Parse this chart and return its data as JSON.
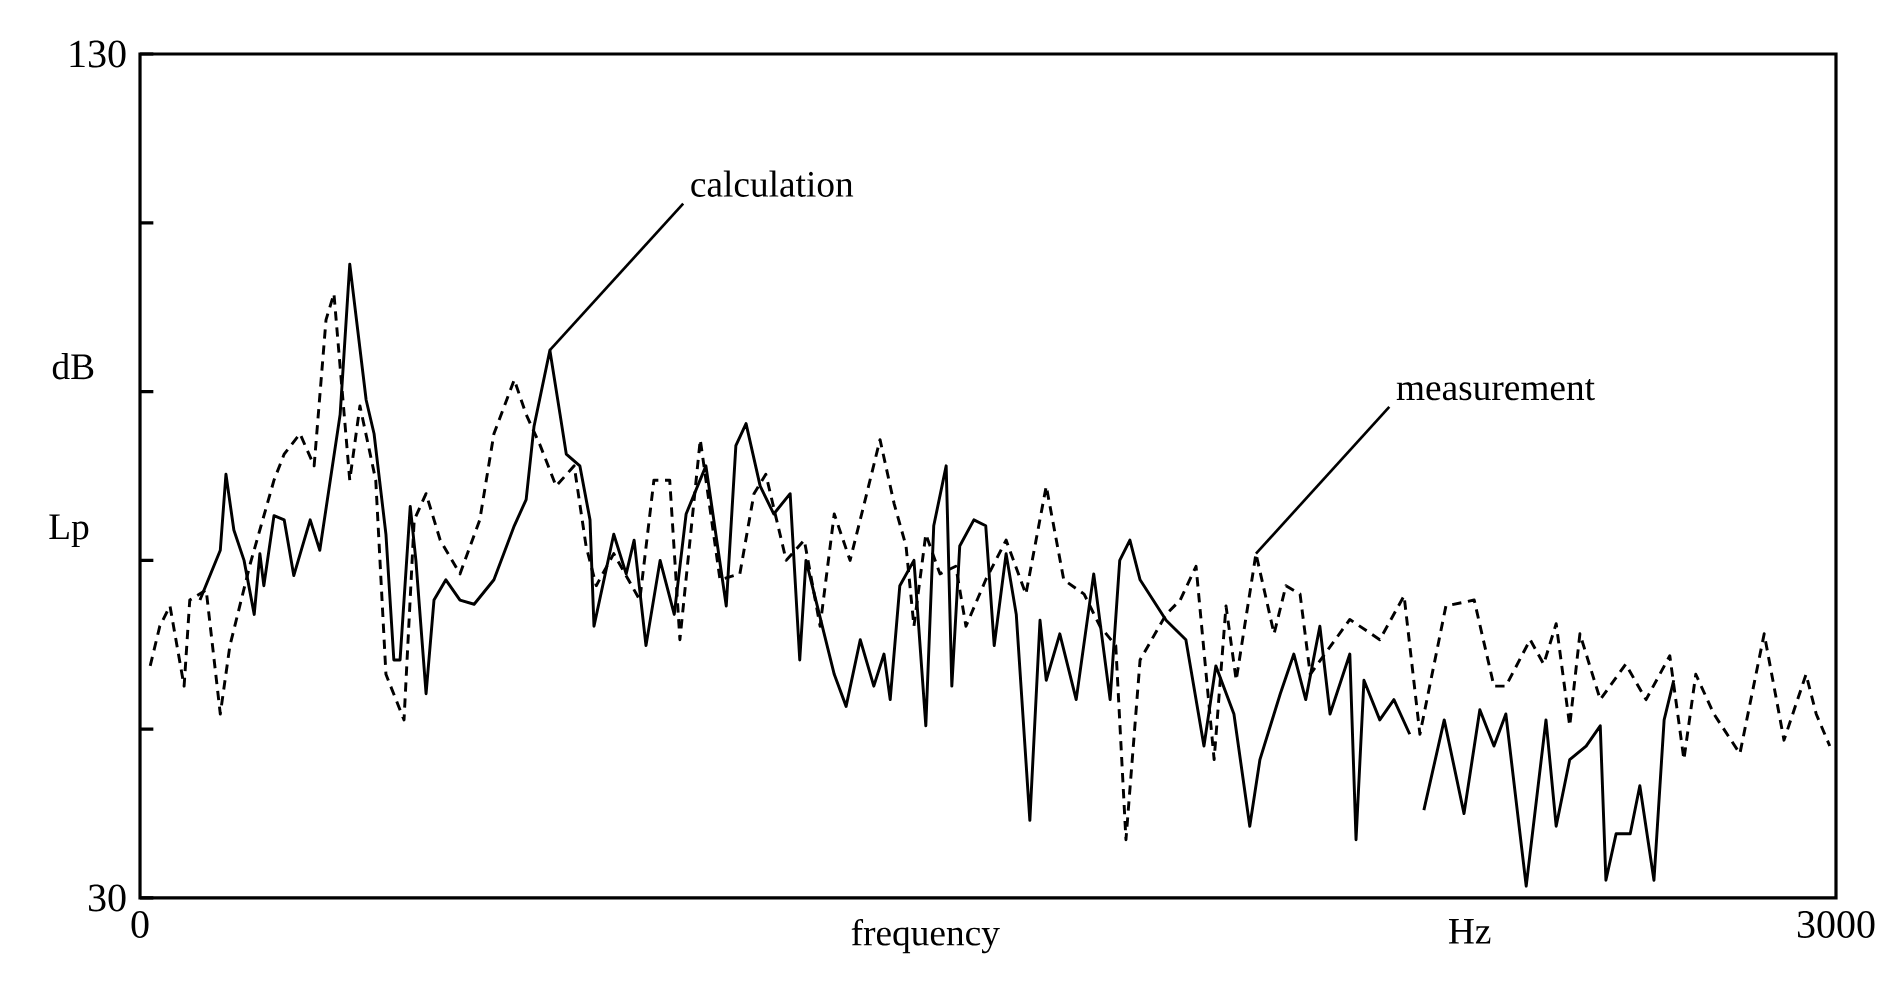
{
  "chart_data": {
    "type": "line",
    "xlabel": "frequency",
    "ylabel": "Lp",
    "xlim": [
      0,
      3000
    ],
    "ylim": [
      30,
      130
    ],
    "xticks": [
      0,
      3000
    ],
    "yticks": [
      30,
      {
        "value": 50,
        "label": null
      },
      {
        "value": 70,
        "label": null
      },
      {
        "value": 90,
        "label": null
      },
      {
        "value": 110,
        "label": null
      },
      130
    ],
    "grid": false,
    "marker": "none",
    "annotations": [
      {
        "text": "calculation",
        "x": 725,
        "y": 94.9
      },
      {
        "text": "measurement",
        "x": 1974,
        "y": 70.8
      },
      "dB",
      "Hz"
    ],
    "series": [
      {
        "color": "#000000",
        "line_style": "solid",
        "x": [
          106,
          142,
          152,
          166,
          184,
          202,
          212,
          219,
          237,
          255,
          272,
          301,
          318,
          354,
          371,
          400,
          414,
          435,
          449,
          460,
          478,
          488,
          506,
          520,
          541,
          566,
          591,
          626,
          662,
          683,
          697,
          725,
          743,
          754,
          778,
          796,
          803,
          838,
          860,
          874,
          895,
          920,
          945,
          966,
          1001,
          1037,
          1054,
          1072,
          1097,
          1121,
          1150,
          1167,
          1178,
          1228,
          1249,
          1274,
          1298,
          1316,
          1327,
          1344,
          1369,
          1390,
          1404,
          1426,
          1436,
          1450,
          1475,
          1496,
          1511,
          1532,
          1550,
          1574,
          1592,
          1603,
          1627,
          1656,
          1687,
          1716,
          1733,
          1751,
          1769,
          1815,
          1850,
          1882,
          1903,
          1935,
          1963,
          1981,
          2017,
          2041,
          2062,
          2087,
          2105,
          2140,
          2151,
          2165,
          2193,
          2218,
          2246,
          2258,
          2271,
          2307,
          2342,
          2370,
          2395,
          2416,
          2434,
          2452,
          2487,
          2505,
          2529,
          2558,
          2583,
          2593,
          2611,
          2636,
          2653,
          2678,
          2696,
          2713
        ],
        "values": [
          65.3,
          71.2,
          80.2,
          73.6,
          70.0,
          63.6,
          70.8,
          67.0,
          75.3,
          74.8,
          68.2,
          74.8,
          71.2,
          87.3,
          105.1,
          89.0,
          85.0,
          73.1,
          58.2,
          58.2,
          76.4,
          70.0,
          54.2,
          65.3,
          67.7,
          65.3,
          64.8,
          67.7,
          74.1,
          77.2,
          85.9,
          94.9,
          87.3,
          82.6,
          81.2,
          74.8,
          62.2,
          73.1,
          68.4,
          72.4,
          59.9,
          70.0,
          63.6,
          75.5,
          81.2,
          64.6,
          83.6,
          86.2,
          78.8,
          75.5,
          77.9,
          58.2,
          70.0,
          56.5,
          52.7,
          60.6,
          55.1,
          58.9,
          53.5,
          67.0,
          70.0,
          50.4,
          74.1,
          81.2,
          55.1,
          71.7,
          74.8,
          74.1,
          59.9,
          70.8,
          63.6,
          39.2,
          62.9,
          55.8,
          61.3,
          53.5,
          68.4,
          53.5,
          70.0,
          72.4,
          67.7,
          62.9,
          60.6,
          48.0,
          57.5,
          51.8,
          38.5,
          46.4,
          54.2,
          58.9,
          53.5,
          62.2,
          51.8,
          58.9,
          36.9,
          55.8,
          51.1,
          53.5,
          49.4,
          null,
          40.4,
          51.1,
          40.0,
          52.3,
          48.0,
          51.8,
          41.6,
          31.4,
          51.1,
          38.5,
          46.4,
          48.0,
          50.4,
          32.1,
          37.6,
          37.6,
          43.3,
          32.1,
          51.1,
          55.8
        ]
      },
      {
        "color": "#000000",
        "line_style": "dashed",
        "x": [
          18,
          35,
          53,
          78,
          88,
          117,
          142,
          159,
          195,
          237,
          255,
          283,
          308,
          329,
          343,
          371,
          389,
          417,
          435,
          467,
          485,
          506,
          531,
          566,
          601,
          626,
          662,
          683,
          708,
          736,
          768,
          789,
          807,
          838,
          884,
          909,
          937,
          955,
          991,
          1026,
          1061,
          1086,
          1107,
          1143,
          1175,
          1203,
          1228,
          1256,
          1281,
          1309,
          1334,
          1355,
          1369,
          1390,
          1415,
          1443,
          1461,
          1496,
          1532,
          1567,
          1603,
          1634,
          1670,
          1698,
          1726,
          1744,
          1769,
          1815,
          1840,
          1868,
          1900,
          1921,
          1939,
          1974,
          2006,
          2027,
          2052,
          2070,
          2140,
          2193,
          2236,
          2264,
          2310,
          2360,
          2395,
          2416,
          2459,
          2483,
          2505,
          2529,
          2547,
          2583,
          2628,
          2664,
          2706,
          2731,
          2752,
          2784,
          2830,
          2873,
          2908,
          2947,
          2965,
          2989
        ],
        "values": [
          57.5,
          62.2,
          64.6,
          55.1,
          65.3,
          66.5,
          51.8,
          59.9,
          69.6,
          79.5,
          82.6,
          85.0,
          81.2,
          98.5,
          101.6,
          79.5,
          88.3,
          79.5,
          56.5,
          51.1,
          74.8,
          77.9,
          72.4,
          68.4,
          74.8,
          85.0,
          91.4,
          87.3,
          83.6,
          78.8,
          81.2,
          71.7,
          67.0,
          70.8,
          65.3,
          79.5,
          79.5,
          60.6,
          84.3,
          67.7,
          68.4,
          77.9,
          80.2,
          70.0,
          72.4,
          62.2,
          75.5,
          70.0,
          76.7,
          84.3,
          76.7,
          71.7,
          62.2,
          73.1,
          68.4,
          69.3,
          62.2,
          67.7,
          72.4,
          66.0,
          78.8,
          67.7,
          66.0,
          62.2,
          59.9,
          36.9,
          58.2,
          63.6,
          65.3,
          69.3,
          46.4,
          64.6,
          55.8,
          70.8,
          61.3,
          67.0,
          66.0,
          56.5,
          63.0,
          60.6,
          65.8,
          49.4,
          64.6,
          65.3,
          55.1,
          55.1,
          60.6,
          57.7,
          62.5,
          50.4,
          61.3,
          53.5,
          57.7,
          53.5,
          58.7,
          46.4,
          56.5,
          51.8,
          47.1,
          61.3,
          48.7,
          56.5,
          51.8,
          48.0
        ]
      }
    ]
  }
}
